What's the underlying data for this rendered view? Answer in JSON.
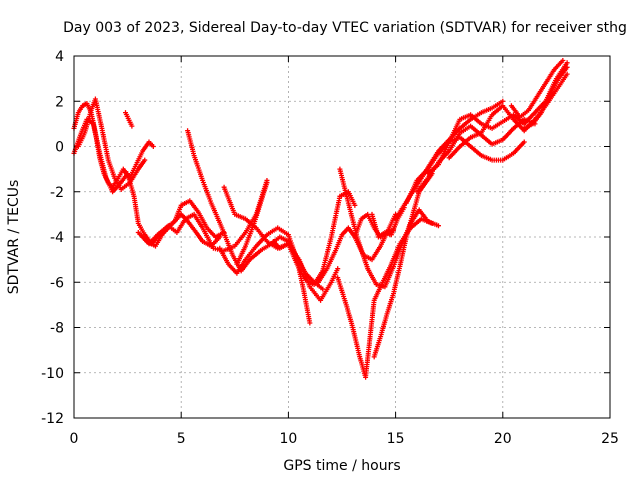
{
  "chart_data": {
    "type": "scatter",
    "title": "Day 003 of 2023, Sidereal Day-to-day VTEC variation (SDTVAR) for receiver sthg",
    "xlabel": "GPS time / hours",
    "ylabel": "SDTVAR / TECUs",
    "xlim": [
      0,
      25
    ],
    "ylim": [
      -12,
      4
    ],
    "x_ticks": [
      0,
      5,
      10,
      15,
      20,
      25
    ],
    "y_ticks": [
      -12,
      -10,
      -8,
      -6,
      -4,
      -2,
      0,
      2,
      4
    ],
    "grid": true,
    "marker": "+",
    "color": "#ff0000",
    "series": [
      {
        "x": [
          0.0,
          0.2,
          0.4,
          0.6,
          0.8,
          1.0,
          1.2,
          1.4,
          1.6,
          1.8,
          2.0,
          2.3,
          2.6,
          2.9,
          3.2,
          3.5,
          3.7
        ],
        "y": [
          0.8,
          1.5,
          1.8,
          1.9,
          1.5,
          0.6,
          -0.5,
          -1.2,
          -1.6,
          -1.8,
          -1.5,
          -1.0,
          -1.4,
          -0.8,
          -0.2,
          0.2,
          0.0
        ]
      },
      {
        "x": [
          0.0,
          0.3,
          0.6,
          0.9,
          1.2,
          1.5,
          1.8,
          2.1,
          2.5
        ],
        "y": [
          -0.3,
          0.5,
          1.2,
          1.0,
          -0.3,
          -1.4,
          -2.0,
          -1.7,
          -1.2
        ]
      },
      {
        "x": [
          0.2,
          0.5,
          0.8,
          1.0,
          1.3,
          1.6,
          1.9,
          2.2,
          2.6,
          3.0,
          3.3
        ],
        "y": [
          0.0,
          0.6,
          1.6,
          2.1,
          0.8,
          -0.6,
          -1.4,
          -1.9,
          -1.6,
          -1.0,
          -0.6
        ]
      },
      {
        "x": [
          2.4,
          2.7
        ],
        "y": [
          1.5,
          0.9
        ]
      },
      {
        "x": [
          2.5,
          2.8,
          3.0,
          3.3,
          3.6,
          3.9,
          4.2,
          4.6,
          5.0,
          5.3,
          5.7,
          6.0,
          6.4,
          6.8
        ],
        "y": [
          -1.2,
          -2.2,
          -3.4,
          -3.9,
          -4.3,
          -4.0,
          -3.8,
          -3.4,
          -3.0,
          -3.3,
          -3.8,
          -4.2,
          -4.4,
          -4.0
        ]
      },
      {
        "x": [
          3.0,
          3.4,
          3.8,
          4.3,
          4.7,
          5.0,
          5.4,
          5.8,
          6.2,
          6.6,
          7.0
        ],
        "y": [
          -3.8,
          -4.2,
          -4.4,
          -3.6,
          -3.3,
          -2.6,
          -2.4,
          -2.9,
          -3.6,
          -4.0,
          -3.8
        ]
      },
      {
        "x": [
          3.2,
          3.5,
          3.9,
          4.4,
          4.8,
          5.2,
          5.6,
          6.0,
          6.5,
          7.0,
          7.5,
          8.0,
          8.5,
          9.0
        ],
        "y": [
          -4.0,
          -4.3,
          -3.9,
          -3.5,
          -3.8,
          -3.2,
          -3.0,
          -3.6,
          -4.5,
          -4.6,
          -4.4,
          -3.8,
          -3.0,
          -1.5
        ]
      },
      {
        "x": [
          5.3,
          5.6,
          6.0,
          6.4,
          6.9,
          7.4,
          7.8,
          8.2,
          8.7,
          9.2,
          9.6,
          10.0,
          10.4,
          10.8,
          11.2,
          11.6
        ],
        "y": [
          0.7,
          -0.4,
          -1.5,
          -2.5,
          -3.6,
          -4.8,
          -5.5,
          -5.0,
          -4.6,
          -4.3,
          -4.0,
          -4.2,
          -4.9,
          -5.6,
          -6.0,
          -6.3
        ]
      },
      {
        "x": [
          6.8,
          7.2,
          7.6,
          8.0,
          8.5,
          9.0,
          9.5,
          10.0,
          10.4,
          10.7,
          11.0
        ],
        "y": [
          -4.5,
          -5.2,
          -5.6,
          -5.0,
          -4.4,
          -3.9,
          -3.6,
          -3.9,
          -5.0,
          -6.3,
          -7.8
        ]
      },
      {
        "x": [
          7.0,
          7.5,
          8.0,
          8.5,
          9.0,
          9.5,
          10.0,
          10.5,
          11.0,
          11.5,
          12.0,
          12.3
        ],
        "y": [
          -1.8,
          -3.0,
          -3.2,
          -3.6,
          -4.2,
          -4.5,
          -4.3,
          -5.0,
          -6.2,
          -6.8,
          -6.0,
          -5.4
        ]
      },
      {
        "x": [
          7.6,
          8.0,
          8.4,
          8.7,
          9.0
        ],
        "y": [
          -5.2,
          -4.4,
          -3.4,
          -2.5,
          -1.6
        ]
      },
      {
        "x": [
          9.3,
          9.6,
          10.0,
          10.4,
          10.8,
          11.2,
          11.6,
          12.0,
          12.4,
          12.8,
          13.1
        ],
        "y": [
          -4.2,
          -4.5,
          -4.3,
          -5.2,
          -5.9,
          -6.1,
          -5.5,
          -4.0,
          -2.2,
          -2.0,
          -2.6
        ]
      },
      {
        "x": [
          11.4,
          11.8,
          12.2,
          12.5,
          12.8,
          13.1,
          13.5,
          13.9,
          14.3,
          14.7,
          15.0
        ],
        "y": [
          -6.0,
          -5.4,
          -4.6,
          -3.9,
          -3.6,
          -4.0,
          -4.8,
          -5.0,
          -4.4,
          -3.6,
          -3.0
        ]
      },
      {
        "x": [
          12.3,
          12.7,
          13.0,
          13.3,
          13.6,
          14.0,
          14.4,
          14.8,
          15.2,
          15.7,
          16.2,
          16.7
        ],
        "y": [
          -5.8,
          -7.0,
          -8.0,
          -9.2,
          -10.2,
          -6.8,
          -6.0,
          -5.2,
          -4.3,
          -3.6,
          -3.2,
          -3.4
        ]
      },
      {
        "x": [
          12.4,
          12.8,
          13.2,
          13.7,
          14.1,
          14.5,
          14.9,
          15.3,
          15.7,
          16.1,
          16.5,
          17.0
        ],
        "y": [
          -1.0,
          -2.5,
          -4.0,
          -5.4,
          -6.1,
          -6.2,
          -5.3,
          -4.3,
          -3.4,
          -2.8,
          -3.3,
          -3.5
        ]
      },
      {
        "x": [
          13.1,
          13.4,
          13.7,
          14.0,
          14.3,
          14.6,
          14.9
        ],
        "y": [
          -4.0,
          -3.2,
          -3.0,
          -3.6,
          -4.0,
          -3.8,
          -3.7
        ]
      },
      {
        "x": [
          13.9,
          14.2,
          14.5,
          14.8,
          15.1,
          15.4
        ],
        "y": [
          -3.0,
          -4.0,
          -3.8,
          -3.9,
          -3.2,
          -2.7
        ]
      },
      {
        "x": [
          14.0,
          14.3,
          14.6,
          14.9,
          15.2,
          15.5,
          15.8,
          16.1,
          16.4,
          16.7
        ],
        "y": [
          -9.3,
          -8.4,
          -7.4,
          -6.5,
          -5.3,
          -4.0,
          -3.0,
          -2.0,
          -1.6,
          -1.2
        ]
      },
      {
        "x": [
          15.0,
          15.4,
          15.8,
          16.2,
          16.6,
          17.0,
          17.5,
          18.0,
          18.5,
          19.0,
          19.5,
          20.0
        ],
        "y": [
          -3.2,
          -2.6,
          -2.0,
          -1.4,
          -0.8,
          -0.2,
          0.3,
          0.8,
          1.2,
          1.5,
          1.7,
          2.0
        ]
      },
      {
        "x": [
          15.5,
          16.0,
          16.5,
          17.0,
          17.5,
          18.0,
          18.5,
          19.0,
          19.5,
          20.0,
          20.5,
          21.0
        ],
        "y": [
          -2.5,
          -1.5,
          -1.0,
          -0.3,
          0.2,
          0.4,
          0.0,
          -0.4,
          -0.6,
          -0.6,
          -0.3,
          0.2
        ]
      },
      {
        "x": [
          16.0,
          16.5,
          17.0,
          17.5,
          18.0,
          18.5,
          19.0,
          19.5,
          20.0,
          20.5,
          21.0,
          21.5
        ],
        "y": [
          -2.0,
          -1.4,
          -0.7,
          -0.2,
          0.6,
          0.9,
          0.5,
          0.1,
          0.3,
          0.8,
          1.2,
          1.0
        ]
      },
      {
        "x": [
          16.5,
          17.0,
          17.5,
          18.0,
          18.5,
          19.0,
          19.5,
          20.0,
          20.5,
          21.0,
          21.5,
          22.0,
          22.5,
          23.0
        ],
        "y": [
          -1.2,
          -0.8,
          0.2,
          1.2,
          1.4,
          1.0,
          0.8,
          1.1,
          1.4,
          1.0,
          1.5,
          2.0,
          3.0,
          3.7
        ]
      },
      {
        "x": [
          17.5,
          18.0,
          18.5,
          19.0,
          19.5,
          20.0,
          20.5,
          21.0,
          21.5,
          22.0,
          22.5,
          23.0
        ],
        "y": [
          -0.5,
          0.0,
          0.4,
          0.6,
          1.4,
          1.8,
          1.2,
          0.7,
          1.2,
          1.8,
          2.5,
          3.2
        ]
      },
      {
        "x": [
          20.4,
          20.8,
          21.2,
          21.6,
          22.0,
          22.4,
          22.8
        ],
        "y": [
          1.8,
          1.3,
          1.6,
          2.2,
          2.8,
          3.4,
          3.8
        ]
      },
      {
        "x": [
          21.0,
          21.4,
          21.8,
          22.2,
          22.6,
          23.0
        ],
        "y": [
          0.8,
          1.0,
          1.5,
          2.3,
          3.0,
          3.5
        ]
      }
    ]
  }
}
